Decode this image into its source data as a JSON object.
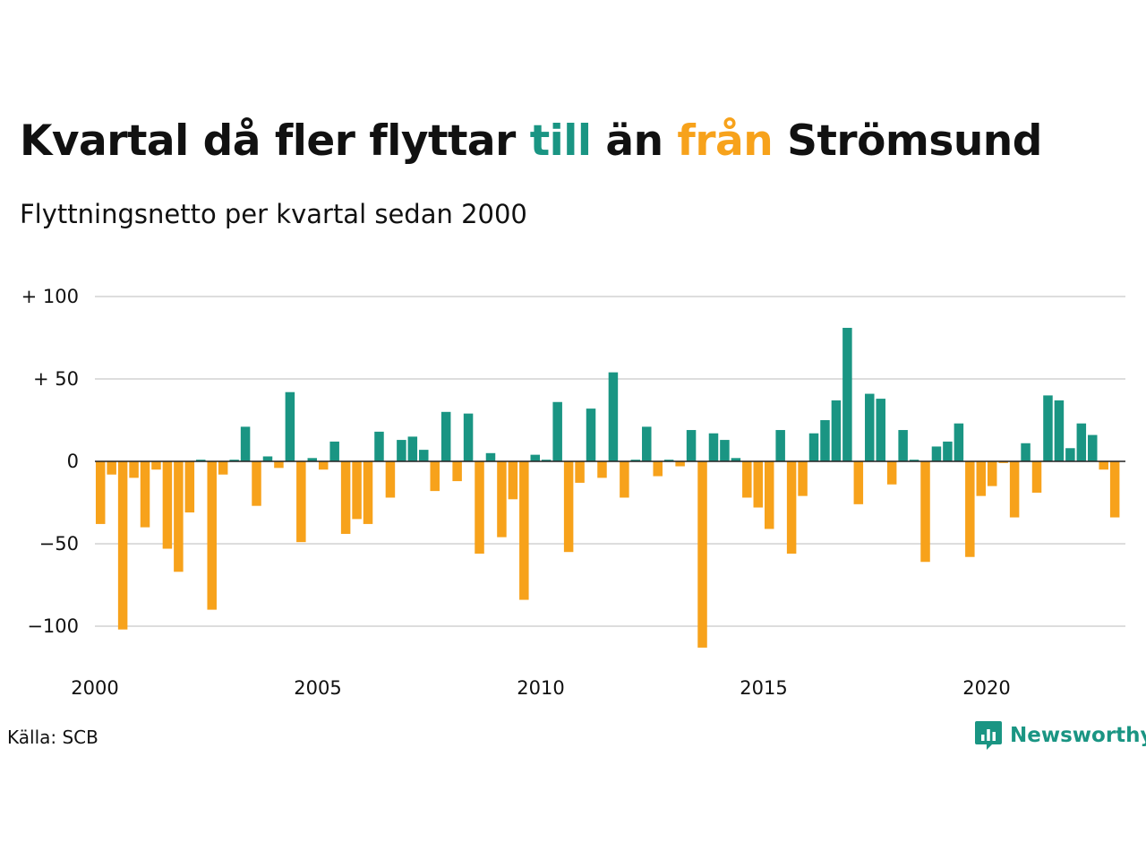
{
  "title": {
    "part1": "Kvartal då fler flyttar ",
    "part2": "till",
    "part3": " än ",
    "part4": "från",
    "part5": " Strömsund"
  },
  "subtitle": "Flyttningsnetto per kvartal sedan 2000",
  "source": "Källa: SCB",
  "brand": "Newsworthy",
  "colors": {
    "positive": "#1a9583",
    "negative": "#f7a21b",
    "grid": "#dddddd",
    "text": "#111111"
  },
  "chart_data": {
    "type": "bar",
    "title": "Kvartal då fler flyttar till än från Strömsund",
    "subtitle": "Flyttningsnetto per kvartal sedan 2000",
    "x_start": "2000 Q1",
    "x_ticks": [
      "2000",
      "2005",
      "2010",
      "2015",
      "2020"
    ],
    "y_ticks": [
      {
        "value": 100,
        "label": "+ 100"
      },
      {
        "value": 50,
        "label": "+  50"
      },
      {
        "value": 0,
        "label": "0"
      },
      {
        "value": -50,
        "label": "−50"
      },
      {
        "value": -100,
        "label": "−100"
      }
    ],
    "ylim": [
      -115,
      100
    ],
    "grid": true,
    "values": [
      -38,
      -8,
      -102,
      -10,
      -40,
      -5,
      -53,
      -67,
      -31,
      1,
      -90,
      -8,
      1,
      21,
      -27,
      3,
      -4,
      42,
      -49,
      2,
      -5,
      12,
      -44,
      -35,
      -38,
      18,
      -22,
      13,
      15,
      7,
      -18,
      30,
      -12,
      29,
      -56,
      5,
      -46,
      -23,
      -84,
      4,
      1,
      36,
      -55,
      -13,
      32,
      -10,
      54,
      -22,
      1,
      21,
      -9,
      1,
      -3,
      19,
      -113,
      17,
      13,
      2,
      -22,
      -28,
      -41,
      19,
      -56,
      -21,
      17,
      25,
      37,
      81,
      -26,
      41,
      38,
      -14,
      19,
      1,
      -61,
      9,
      12,
      23,
      -58,
      -21,
      -15,
      -1,
      -34,
      11,
      -19,
      40,
      37,
      8,
      23,
      16,
      -5,
      -34
    ]
  }
}
